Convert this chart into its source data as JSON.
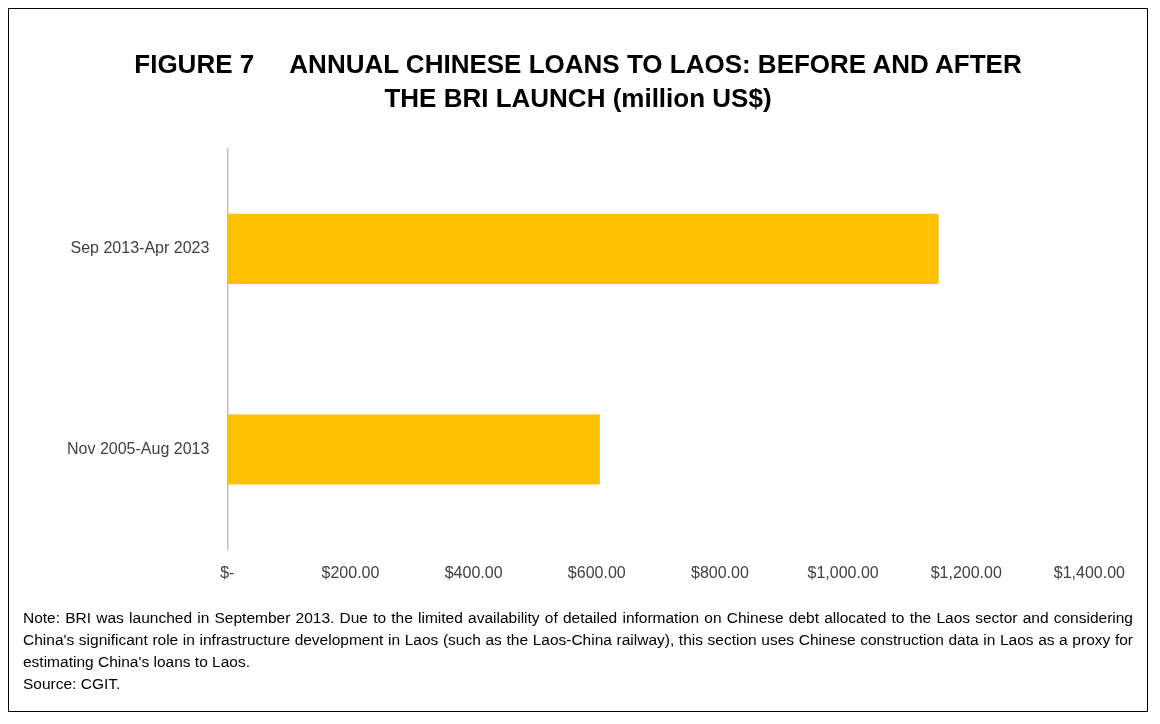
{
  "chart_data": {
    "type": "bar",
    "orientation": "horizontal",
    "title": "FIGURE 7     ANNUAL CHINESE LOANS TO LAOS: BEFORE AND AFTER THE BRI LAUNCH (million US$)",
    "categories": [
      "Sep 2013-Apr 2023",
      "Nov 2005-Aug 2013"
    ],
    "values": [
      1155,
      605
    ],
    "color": "#ffc000",
    "xlim": [
      0,
      1400
    ],
    "xticks": [
      {
        "value": 0,
        "label": "$-"
      },
      {
        "value": 200,
        "label": "$200.00"
      },
      {
        "value": 400,
        "label": "$400.00"
      },
      {
        "value": 600,
        "label": "$600.00"
      },
      {
        "value": 800,
        "label": "$800.00"
      },
      {
        "value": 1000,
        "label": "$1,000.00"
      },
      {
        "value": 1200,
        "label": "$1,200.00"
      },
      {
        "value": 1400,
        "label": "$1,400.00"
      }
    ],
    "grid": false,
    "legend": false,
    "annotations": [
      "Note: BRI was launched in September 2013. Due to the limited availability of detailed information on Chinese debt allocated to the Laos sector and considering China's significant role in infrastructure development in Laos (such as the Laos-China railway), this section uses Chinese construction data in Laos as a proxy for estimating China's loans to Laos.",
      "Source: CGIT."
    ]
  }
}
